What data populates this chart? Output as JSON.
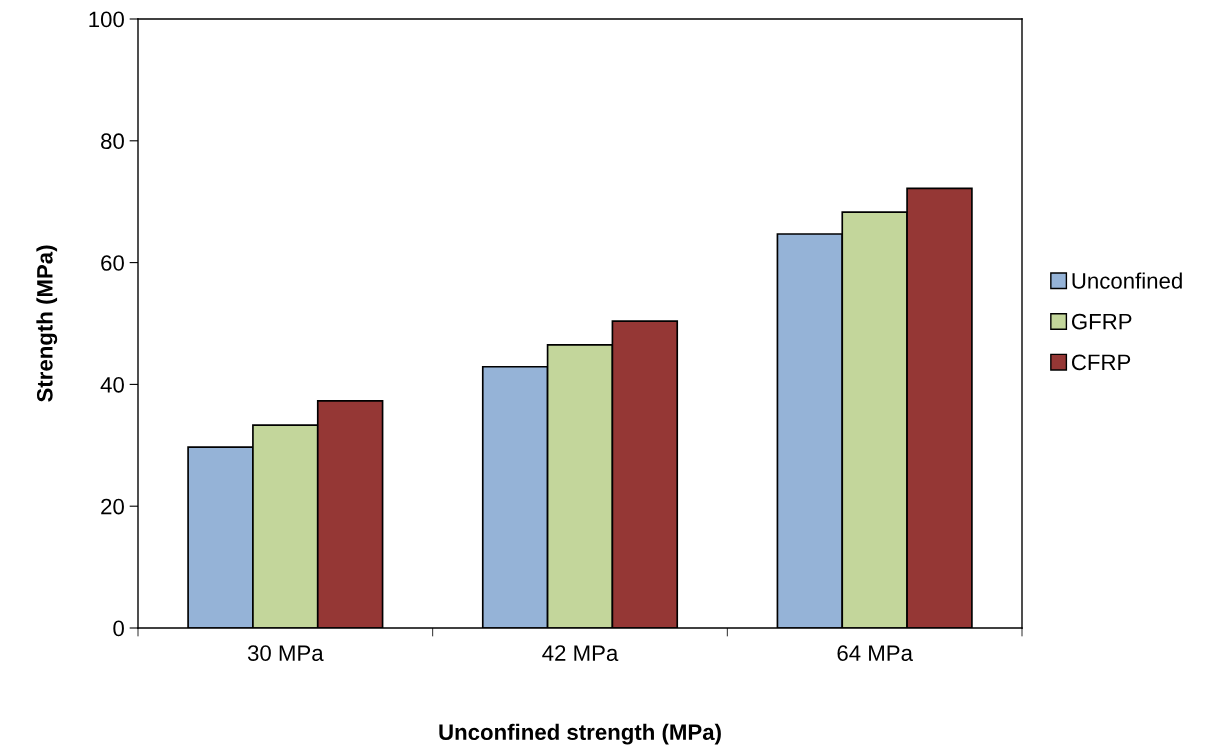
{
  "chart_data": {
    "type": "bar",
    "xlabel": "Unconfined strength (MPa)",
    "ylabel": "Strength (MPa)",
    "categories": [
      "30 MPa",
      "42 MPa",
      "64 MPa"
    ],
    "series": [
      {
        "name": "Unconfined",
        "color": "#95b3d7",
        "values": [
          29.7,
          42.9,
          64.7
        ]
      },
      {
        "name": "GFRP",
        "color": "#c3d69b",
        "values": [
          33.3,
          46.5,
          68.3
        ]
      },
      {
        "name": "CFRP",
        "color": "#953735",
        "values": [
          37.3,
          50.4,
          72.2
        ]
      }
    ],
    "ylim": [
      0,
      100
    ],
    "yticks": [
      0,
      20,
      40,
      60,
      80,
      100
    ],
    "grid": false,
    "legend": "right"
  }
}
